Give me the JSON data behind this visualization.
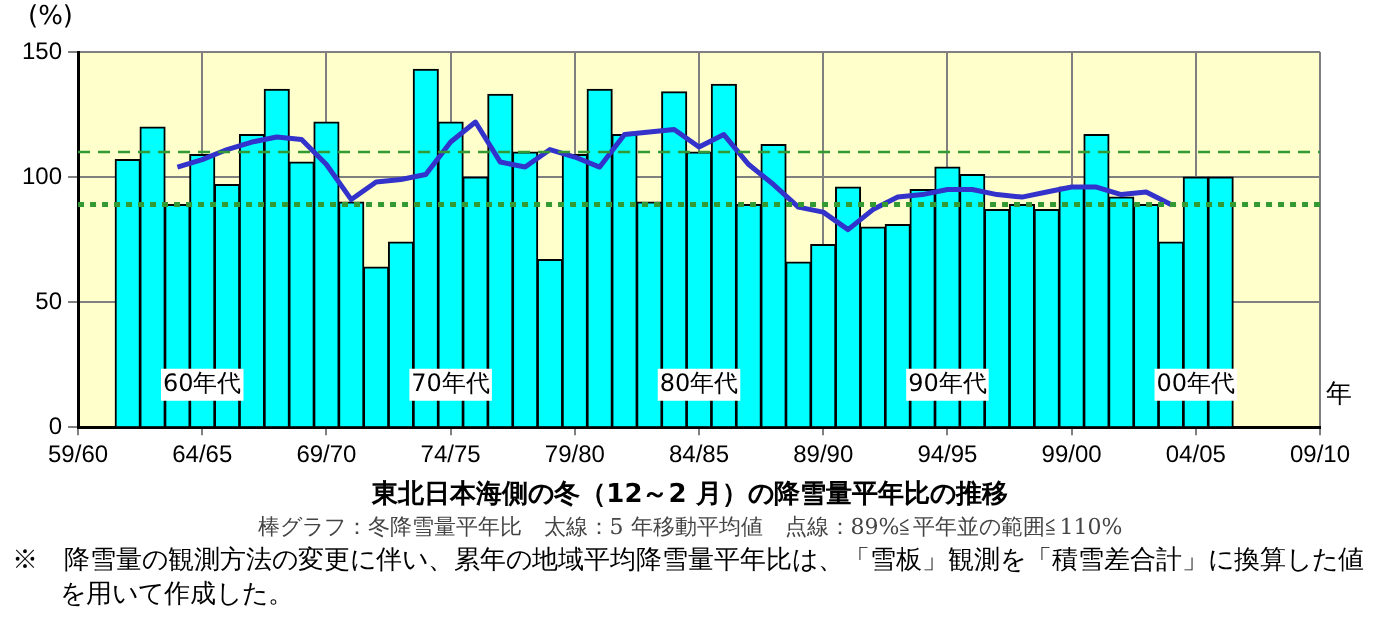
{
  "chart_data": {
    "type": "bar",
    "title": "東北日本海側の冬（12～2 月）の降雪量平年比の推移",
    "subtitle": "棒グラフ：冬降雪量平年比　太線：5 年移動平均値　点線：89%≦平年並の範囲≦110%",
    "ylabel": "(%)",
    "xlabel": "年",
    "categories": [
      "59/60",
      null,
      null,
      null,
      null,
      "64/65",
      null,
      null,
      null,
      null,
      "69/70",
      null,
      null,
      null,
      null,
      "74/75",
      null,
      null,
      null,
      null,
      "79/80",
      null,
      null,
      null,
      null,
      "84/85",
      null,
      null,
      null,
      null,
      "89/90",
      null,
      null,
      null,
      null,
      "94/95",
      null,
      null,
      null,
      null,
      "99/00",
      null,
      null,
      null,
      null,
      "04/05",
      null,
      null,
      null,
      null,
      "09/10"
    ],
    "series": [
      {
        "color": "#00ffff",
        "values": [
          null,
          null,
          107,
          120,
          89,
          109,
          97,
          117,
          135,
          106,
          122,
          90,
          64,
          74,
          143,
          122,
          100,
          133,
          110,
          67,
          109,
          135,
          117,
          90,
          134,
          110,
          137,
          89,
          113,
          66,
          73,
          96,
          80,
          81,
          95,
          104,
          101,
          87,
          89,
          87,
          96,
          117,
          92,
          89,
          74,
          100,
          100,
          null,
          null,
          null,
          null
        ]
      },
      {
        "type": "line",
        "color": "#3333cc",
        "values": [
          null,
          null,
          null,
          null,
          104,
          107,
          111,
          114,
          116,
          115,
          105,
          91,
          98,
          99,
          101,
          114,
          122,
          106,
          104,
          111,
          108,
          104,
          117,
          118,
          119,
          112,
          117,
          105,
          97,
          88,
          86,
          79,
          87,
          92,
          93,
          95,
          95,
          93,
          92,
          94,
          96,
          96,
          93,
          94,
          89,
          null,
          null,
          null,
          null,
          null,
          null
        ]
      }
    ],
    "ylim": [
      0,
      150
    ],
    "yticks": [
      0,
      50,
      100,
      150
    ],
    "grid": true,
    "legend": false,
    "ref_lines": [
      {
        "axis": "y",
        "value": 110,
        "color": "#339933",
        "line_style": "dashed"
      },
      {
        "axis": "y",
        "value": 89,
        "color": "#339933",
        "line_style": "dotted"
      }
    ],
    "annotations": [
      {
        "text": "60年代",
        "x": "64/65",
        "y": 17
      },
      {
        "text": "70年代",
        "x": "74/75",
        "y": 17
      },
      {
        "text": "80年代",
        "x": "84/85",
        "y": 17
      },
      {
        "text": "90年代",
        "x": "94/95",
        "y": 17
      },
      {
        "text": "00年代",
        "x": "04/05",
        "y": 17
      },
      "※　降雪量の観測方法の変更に伴い、累年の地域平均降雪量平年比は、「雪板」観測を「積雪差合計」に換算した値を用いて作成した。"
    ]
  }
}
